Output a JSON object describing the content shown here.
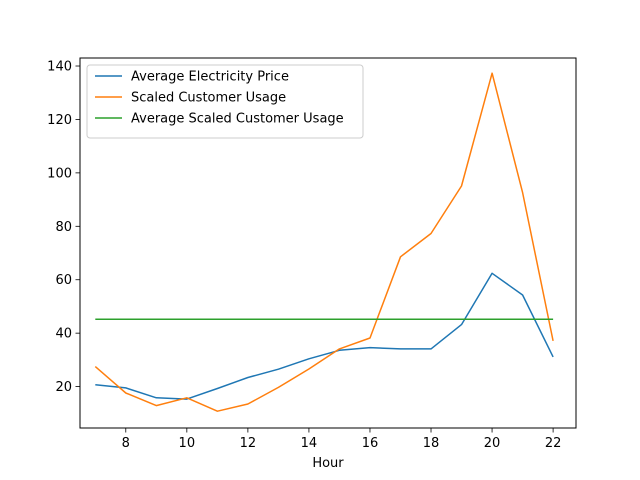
{
  "chart_data": {
    "type": "line",
    "xlabel": "Hour",
    "ylabel": "",
    "title": "",
    "xlim": [
      6.5,
      22.75
    ],
    "ylim": [
      4.5,
      143
    ],
    "x_ticks": [
      8,
      10,
      12,
      14,
      16,
      18,
      20,
      22
    ],
    "y_ticks": [
      20,
      40,
      60,
      80,
      100,
      120,
      140
    ],
    "grid": false,
    "legend_position": "top-left",
    "series": [
      {
        "name": "Average Electricity Price",
        "color": "#1f77b4",
        "x": [
          7,
          8,
          9,
          10,
          11,
          12,
          13,
          14,
          15,
          16,
          17,
          18,
          19,
          20,
          21,
          22
        ],
        "values": [
          20.7,
          19.5,
          15.8,
          15.3,
          19.3,
          23.4,
          26.5,
          30.4,
          33.6,
          34.6,
          34.1,
          34.1,
          43.2,
          62.4,
          54.3,
          31.1
        ]
      },
      {
        "name": "Scaled Customer Usage",
        "color": "#ff7f0e",
        "x": [
          7,
          8,
          9,
          10,
          11,
          12,
          13,
          14,
          15,
          16,
          17,
          18,
          19,
          20,
          21,
          22
        ],
        "values": [
          27.5,
          17.6,
          12.9,
          15.8,
          10.8,
          13.5,
          19.7,
          26.6,
          34.1,
          38.2,
          68.6,
          77.3,
          95.1,
          137.3,
          92.6,
          37.1
        ]
      },
      {
        "name": "Average Scaled Customer Usage",
        "color": "#2ca02c",
        "x": [
          7,
          8,
          9,
          10,
          11,
          12,
          13,
          14,
          15,
          16,
          17,
          18,
          19,
          20,
          21,
          22
        ],
        "values": [
          45.2,
          45.2,
          45.2,
          45.2,
          45.2,
          45.2,
          45.2,
          45.2,
          45.2,
          45.2,
          45.2,
          45.2,
          45.2,
          45.2,
          45.2,
          45.2
        ]
      }
    ]
  }
}
